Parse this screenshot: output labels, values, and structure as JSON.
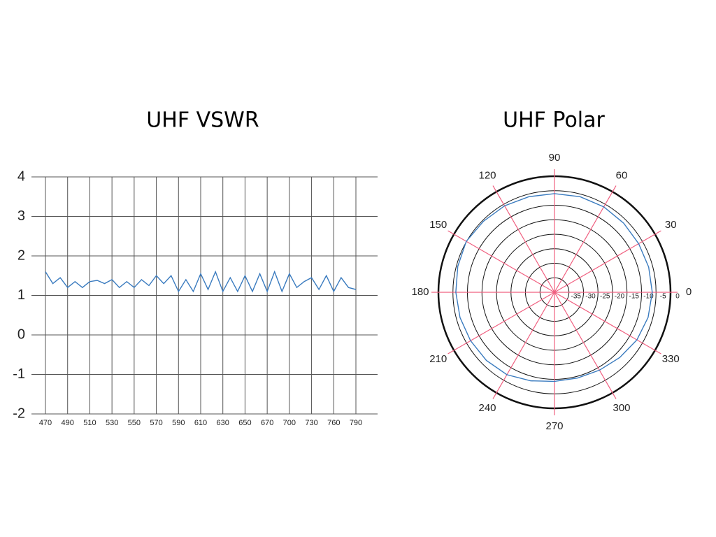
{
  "chart_data": [
    {
      "type": "line",
      "title": "UHF VSWR",
      "categories": [
        "470",
        null,
        null,
        "490",
        null,
        null,
        "510",
        null,
        null,
        "530",
        null,
        null,
        "550",
        null,
        null,
        "570",
        null,
        null,
        "590",
        null,
        null,
        "610",
        null,
        null,
        "630",
        null,
        null,
        "650",
        null,
        null,
        "670",
        null,
        null,
        "700",
        null,
        null,
        "730",
        null,
        null,
        "760",
        null,
        null,
        "790"
      ],
      "series": [
        {
          "color": "#3a7bbf",
          "values": [
            1.6,
            1.3,
            1.45,
            1.2,
            1.35,
            1.2,
            1.35,
            1.38,
            1.3,
            1.4,
            1.2,
            1.35,
            1.2,
            1.4,
            1.25,
            1.5,
            1.3,
            1.5,
            1.1,
            1.4,
            1.1,
            1.55,
            1.15,
            1.6,
            1.1,
            1.45,
            1.1,
            1.5,
            1.1,
            1.55,
            1.1,
            1.6,
            1.1,
            1.55,
            1.2,
            1.35,
            1.45,
            1.15,
            1.5,
            1.1,
            1.45,
            1.2,
            1.15
          ]
        }
      ],
      "ylim": [
        -2,
        4
      ],
      "yticks": [
        -2,
        -1,
        0,
        1,
        2,
        3,
        4
      ],
      "grid": true
    },
    {
      "type": "polar",
      "title": "UHF Polar",
      "theta": [
        0,
        15,
        30,
        45,
        60,
        75,
        90,
        105,
        120,
        135,
        150,
        165,
        180,
        195,
        210,
        225,
        240,
        255,
        270,
        285,
        300,
        315,
        330,
        345
      ],
      "series": [
        {
          "color": "#3a7bbf",
          "values": [
            -6.3,
            -6.4,
            -6.5,
            -6.3,
            -6.0,
            -5.9,
            -6.0,
            -5.9,
            -5.6,
            -5.4,
            -4.9,
            -5.5,
            -6.0,
            -6.3,
            -6.6,
            -6.8,
            -7.2,
            -8.4,
            -9.3,
            -9.4,
            -9.0,
            -8.2,
            -7.2,
            -6.6
          ]
        }
      ],
      "thetaticks": [
        0,
        30,
        60,
        90,
        120,
        150,
        180,
        210,
        240,
        270,
        300,
        330
      ],
      "rlim": [
        -40,
        0
      ],
      "rticks": [
        -35,
        -30,
        -25,
        -20,
        -15,
        -10,
        -5,
        0
      ],
      "spoke_color": "#f06080"
    }
  ]
}
